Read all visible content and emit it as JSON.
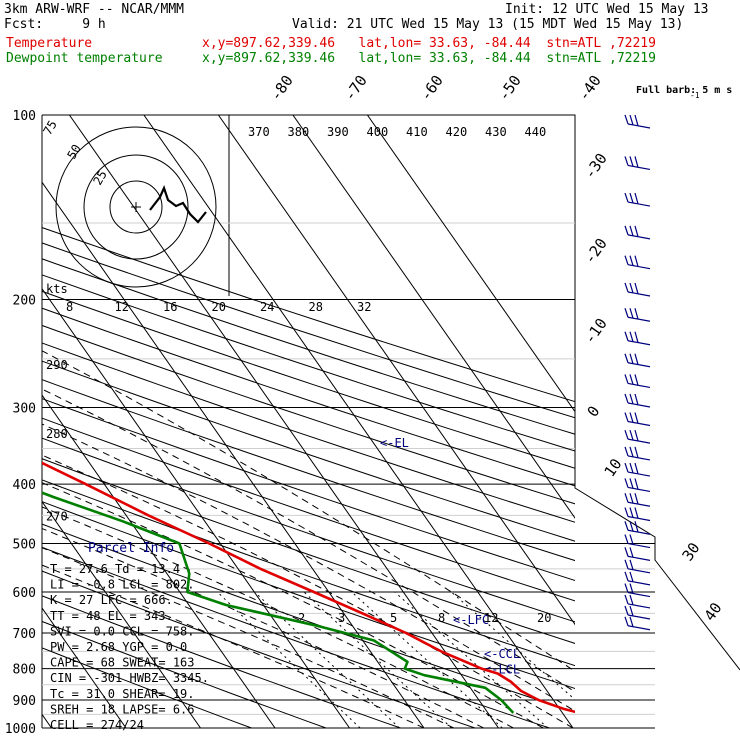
{
  "header": {
    "model": "3km ARW-WRF -- NCAR/MMM",
    "init": "Init: 12 UTC Wed 15 May 13",
    "fcst": "Fcst:     9 h",
    "valid": "Valid: 21 UTC Wed 15 May 13 (15 MDT Wed 15 May 13)",
    "temp_label": "Temperature",
    "dew_label": "Dewpoint temperature",
    "loc_temp": "x,y=897.62,339.46   lat,lon= 33.63, -84.44  stn=ATL ,72219",
    "loc_dew": "x,y=897.62,339.46   lat,lon= 33.63, -84.44  stn=ATL ,72219"
  },
  "colors": {
    "temperature": "#e00000",
    "dewpoint": "#008000",
    "parcel_text": "#000080",
    "grid": "#000000"
  },
  "chart_data": {
    "type": "line",
    "pressure_levels": [
      100,
      200,
      300,
      400,
      500,
      600,
      700,
      800,
      900,
      1000
    ],
    "pressure_labels": [
      "100",
      "200",
      "300",
      "400",
      "500",
      "600",
      "700",
      "800",
      "900",
      "1000"
    ],
    "ylim": [
      1000,
      100
    ],
    "temp_ticks": [
      -80,
      -70,
      -60,
      -50,
      -40,
      -30,
      -20,
      -10,
      0,
      10,
      20,
      30,
      40
    ],
    "temp_tick_labels": [
      "-80",
      "-70",
      "-60",
      "-50",
      "-40",
      "-30",
      "-20",
      "-10",
      "0",
      "10",
      "20",
      "30",
      "40"
    ],
    "theta_labels_top": [
      "370",
      "380",
      "390",
      "400",
      "410",
      "420",
      "430",
      "440"
    ],
    "theta_labels_left": [
      {
        "p": 255,
        "label": "290"
      },
      {
        "p": 330,
        "label": "280"
      },
      {
        "p": 450,
        "label": "270"
      }
    ],
    "mixing_ratio_labels": [
      "2",
      "3",
      "5",
      "8",
      "12",
      "20"
    ],
    "series": [
      {
        "key": "temperature",
        "points": [
          {
            "p": 988,
            "t": 27.6
          },
          {
            "p": 960,
            "t": 24.0
          },
          {
            "p": 930,
            "t": 20.5
          },
          {
            "p": 900,
            "t": 18.0
          },
          {
            "p": 870,
            "t": 16.5
          },
          {
            "p": 840,
            "t": 16.0
          },
          {
            "p": 815,
            "t": 15.0
          },
          {
            "p": 800,
            "t": 13.3
          },
          {
            "p": 750,
            "t": 9.5
          },
          {
            "p": 700,
            "t": 6.5
          },
          {
            "p": 650,
            "t": 2.5
          },
          {
            "p": 600,
            "t": -2.0
          },
          {
            "p": 550,
            "t": -7.0
          },
          {
            "p": 500,
            "t": -11.5
          },
          {
            "p": 450,
            "t": -17.0
          },
          {
            "p": 400,
            "t": -22.5
          },
          {
            "p": 350,
            "t": -29.0
          },
          {
            "p": 300,
            "t": -37.0
          },
          {
            "p": 250,
            "t": -45.5
          },
          {
            "p": 220,
            "t": -50.5
          },
          {
            "p": 200,
            "t": -54.0
          },
          {
            "p": 180,
            "t": -57.0
          },
          {
            "p": 160,
            "t": -59.0
          },
          {
            "p": 140,
            "t": -61.0
          },
          {
            "p": 120,
            "t": -61.5
          },
          {
            "p": 100,
            "t": -61.0
          }
        ]
      },
      {
        "key": "dewpoint",
        "points": [
          {
            "p": 945,
            "t": 13.4
          },
          {
            "p": 900,
            "t": 13.0
          },
          {
            "p": 860,
            "t": 12.0
          },
          {
            "p": 820,
            "t": 5.0
          },
          {
            "p": 800,
            "t": 3.0
          },
          {
            "p": 780,
            "t": 4.0
          },
          {
            "p": 720,
            "t": 1.5
          },
          {
            "p": 680,
            "t": -5.0
          },
          {
            "p": 630,
            "t": -15.0
          },
          {
            "p": 600,
            "t": -19.0
          },
          {
            "p": 560,
            "t": -17.0
          },
          {
            "p": 500,
            "t": -15.5
          },
          {
            "p": 460,
            "t": -21.0
          },
          {
            "p": 420,
            "t": -28.0
          },
          {
            "p": 380,
            "t": -35.0
          },
          {
            "p": 340,
            "t": -39.0
          },
          {
            "p": 300,
            "t": -39.0
          },
          {
            "p": 270,
            "t": -38.0
          },
          {
            "p": 250,
            "t": -39.0
          },
          {
            "p": 220,
            "t": -46.0
          },
          {
            "p": 200,
            "t": -50.0
          },
          {
            "p": 180,
            "t": -55.0
          },
          {
            "p": 160,
            "t": -61.0
          },
          {
            "p": 140,
            "t": -66.0
          },
          {
            "p": 120,
            "t": -71.0
          },
          {
            "p": 100,
            "t": -74.0
          }
        ]
      }
    ],
    "levels": [
      {
        "label": "<-EL",
        "p": 343
      },
      {
        "label": "<-LFC",
        "p": 666
      },
      {
        "label": "<-CCL",
        "p": 758
      },
      {
        "label": "<-LCL",
        "p": 802
      }
    ],
    "hodograph": {
      "units_label": "kts",
      "ring_labels": [
        "75",
        "50",
        "25"
      ],
      "speed_labels": [
        "8",
        "12",
        "16",
        "20",
        "24",
        "28",
        "32"
      ]
    },
    "wind_barbs": {
      "legend": "Full barb: 5 m s",
      "legend_exp": "-1"
    }
  },
  "parcel_info": {
    "title": "Parcel Info",
    "rows": [
      "T  =    27.6  Td =  13.4",
      "LI =    -0.8  LCL =  802.",
      "K  =      27  LFC =  666.",
      "TT =      48  EL  =  343.",
      "SVI =    0.0  CCL =  758.",
      "PW =    2.68  YGP =   0.0",
      "CAPE =    68  SWEAT=  163",
      "CIN =   -301  HWBZ= 3345.",
      "Tc =    31.0  SHEAR=  19.",
      "SREH =    18  LAPSE=  6.6",
      "CELL = 274/24"
    ]
  }
}
